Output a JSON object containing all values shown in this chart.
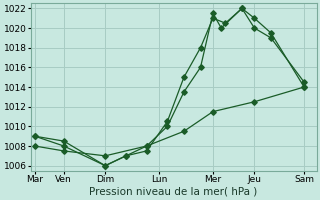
{
  "title": "",
  "xlabel": "Pression niveau de la mer( hPa )",
  "bg_color": "#c8e8e0",
  "grid_color": "#a8ccc4",
  "line_color": "#1a5c28",
  "days": [
    "Mar",
    "Ven",
    "Dim",
    "Lun",
    "Mer",
    "Jeu",
    "Sam"
  ],
  "day_x": [
    0,
    0.7,
    1.7,
    3.0,
    4.3,
    5.3,
    6.5
  ],
  "xlim": [
    -0.1,
    6.8
  ],
  "ylim": [
    1005.5,
    1022.5
  ],
  "yticks": [
    1006,
    1008,
    1010,
    1012,
    1014,
    1016,
    1018,
    1020,
    1022
  ],
  "line1": {
    "x": [
      0.0,
      0.7,
      1.7,
      2.2,
      2.7,
      3.2,
      3.6,
      4.0,
      4.3,
      4.6,
      5.0,
      5.3,
      5.7,
      6.5
    ],
    "y": [
      1009,
      1008,
      1006,
      1007,
      1007.5,
      1010.5,
      1015,
      1018,
      1021,
      1020.5,
      1022,
      1021,
      1019.5,
      1014
    ]
  },
  "line2": {
    "x": [
      0.0,
      0.7,
      1.7,
      2.2,
      2.7,
      3.2,
      3.6,
      4.0,
      4.3,
      4.5,
      5.0,
      5.3,
      5.7,
      6.5
    ],
    "y": [
      1009,
      1008.5,
      1006,
      1007,
      1008,
      1010,
      1013.5,
      1016,
      1021.5,
      1020,
      1022,
      1020,
      1019,
      1014.5
    ]
  },
  "line3": {
    "x": [
      0.0,
      0.7,
      1.7,
      2.7,
      3.6,
      4.3,
      5.3,
      6.5
    ],
    "y": [
      1008,
      1007.5,
      1007,
      1008,
      1009.5,
      1011.5,
      1012.5,
      1014
    ]
  }
}
